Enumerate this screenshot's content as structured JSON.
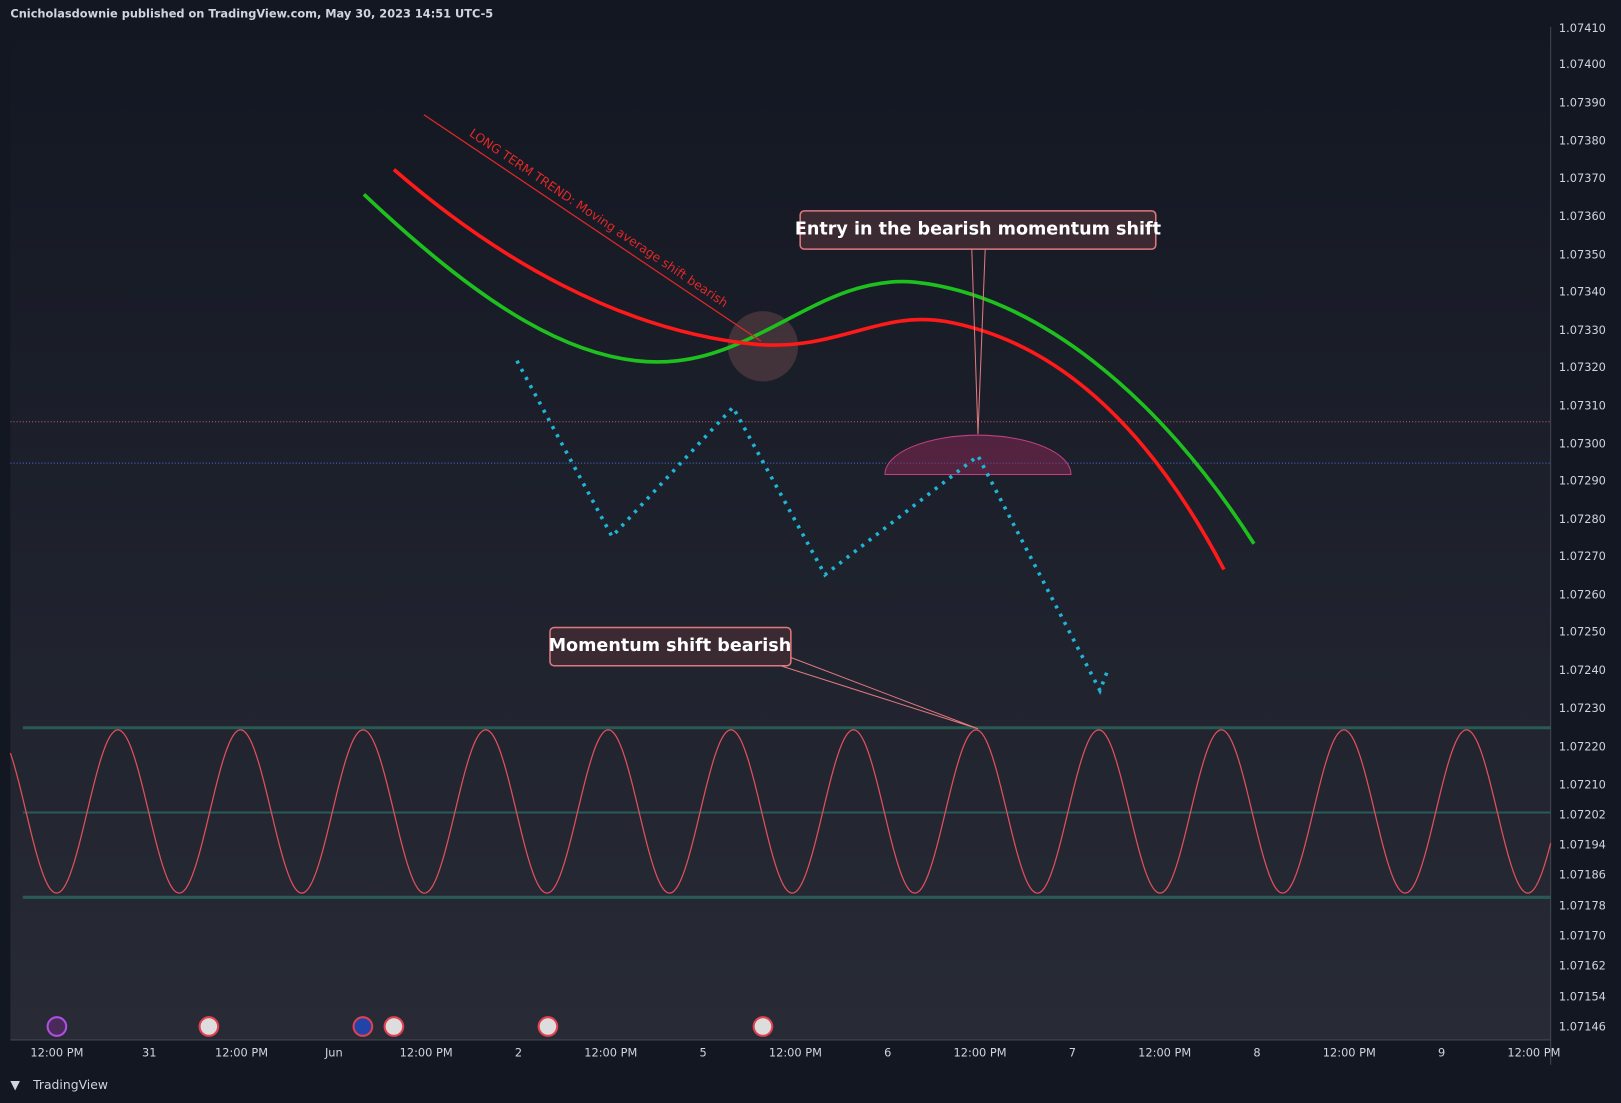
{
  "header": {
    "text": "Cnicholasdownie published on TradingView.com, May 30, 2023 14:51 UTC-5"
  },
  "annotations": {
    "trend": "LONG TERM TREND: Moving average shift bearish",
    "entry": "Entry in the bearish momentum shift",
    "momentum": "Momentum shift bearish"
  },
  "price_axis": [
    "1.07410",
    "1.07400",
    "1.07390",
    "1.07380",
    "1.07370",
    "1.07360",
    "1.07350",
    "1.07340",
    "1.07330",
    "1.07320",
    "1.07310",
    "1.07300",
    "1.07290",
    "1.07280",
    "1.07270",
    "1.07260",
    "1.07250",
    "1.07240",
    "1.07230",
    "1.07220",
    "1.07210",
    "1.07202",
    "1.07194",
    "1.07186",
    "1.07178",
    "1.07170",
    "1.07162",
    "1.07154",
    "1.07146"
  ],
  "time_axis": [
    "12:00 PM",
    "31",
    "12:00 PM",
    "Jun",
    "12:00 PM",
    "2",
    "12:00 PM",
    "5",
    "12:00 PM",
    "6",
    "12:00 PM",
    "7",
    "12:00 PM",
    "8",
    "12:00 PM",
    "9",
    "12:00 PM"
  ],
  "footer": {
    "brand": "TradingView"
  }
}
